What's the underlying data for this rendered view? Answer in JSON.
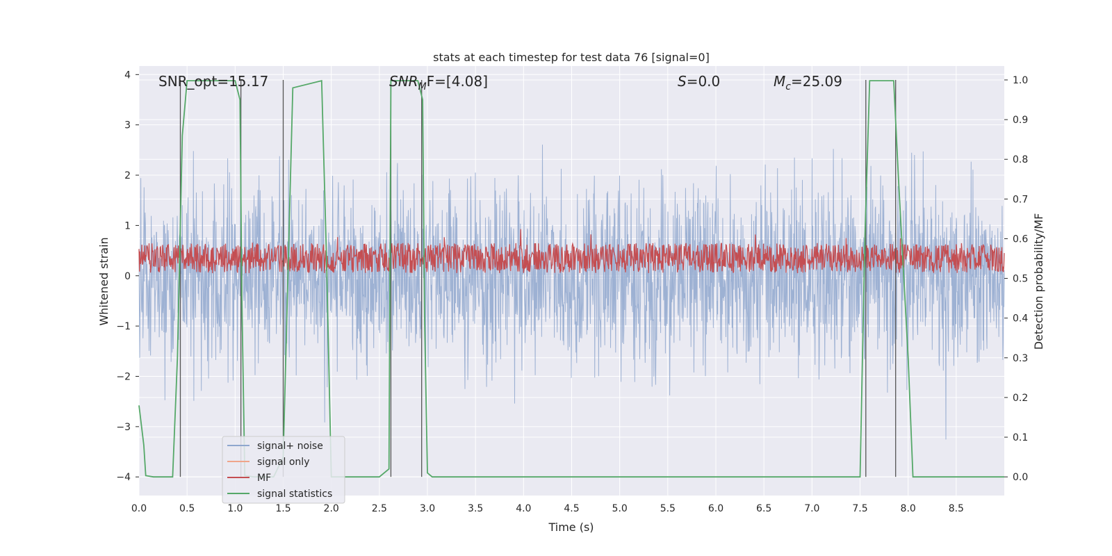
{
  "chart_data": {
    "type": "line",
    "title": "stats at each timestep for test data 76 [signal=0]",
    "xlabel": "Time (s)",
    "ylabel": "Whitened strain",
    "y2label": "Detection probability/MF",
    "xlim": [
      0.0,
      9.0
    ],
    "ylim": [
      -4.37,
      4.17
    ],
    "y2lim": [
      -0.047,
      1.035
    ],
    "xticks": [
      "0.0",
      "0.5",
      "1.0",
      "1.5",
      "2.0",
      "2.5",
      "3.0",
      "3.5",
      "4.0",
      "4.5",
      "5.0",
      "5.5",
      "6.0",
      "6.5",
      "7.0",
      "7.5",
      "8.0",
      "8.5"
    ],
    "yticks": [
      "4",
      "3",
      "2",
      "1",
      "0",
      "−1",
      "−2",
      "−3",
      "−4"
    ],
    "y2ticks": [
      "1.0",
      "0.9",
      "0.8",
      "0.7",
      "0.6",
      "0.5",
      "0.4",
      "0.3",
      "0.2",
      "0.1",
      "0.0"
    ],
    "grid": true,
    "legend_position": "lower-left",
    "annotations": {
      "snr_opt": "SNR_opt=15.17",
      "snr_mf_var": "SNR",
      "snr_mf_sub": "M",
      "snr_mf_rest": "F=[4.08]",
      "s_var": "S",
      "s_rest": "=0.0",
      "mc_var": "M",
      "mc_sub": "c",
      "mc_rest": "=25.09"
    },
    "series": [
      {
        "name": "signal+ noise",
        "color": "#8fa7ce",
        "description_range": [
          -4.0,
          4.0
        ]
      },
      {
        "name": "signal only",
        "color": "#f0a58a"
      },
      {
        "name": "MF",
        "color": "#c44e52"
      },
      {
        "name": "signal statistics",
        "color": "#55a868",
        "x": [
          0.0,
          0.05,
          0.07,
          0.15,
          0.35,
          0.4,
          0.45,
          0.5,
          0.95,
          1.0,
          1.05,
          1.07,
          1.1,
          1.2,
          1.4,
          1.5,
          1.6,
          1.9,
          1.95,
          2.0,
          2.1,
          2.5,
          2.6,
          2.62,
          2.65,
          2.9,
          2.95,
          2.97,
          3.0,
          3.05,
          7.5,
          7.55,
          7.6,
          7.85,
          7.9,
          8.0,
          8.05,
          9.0
        ],
        "values": [
          0.18,
          0.08,
          0.003,
          0.0,
          0.0,
          0.3,
          0.86,
          0.998,
          0.998,
          0.998,
          0.95,
          0.45,
          0.003,
          0.0,
          0.0,
          0.05,
          0.98,
          0.998,
          0.55,
          0.0,
          0.0,
          0.0,
          0.02,
          0.998,
          0.998,
          0.998,
          0.95,
          0.4,
          0.01,
          0.0,
          0.0,
          0.6,
          0.998,
          0.998,
          0.75,
          0.3,
          0.0,
          0.0
        ]
      }
    ],
    "vertical_lines_x": [
      0.43,
      1.06,
      1.5,
      2.62,
      2.94,
      7.56,
      7.87
    ]
  },
  "legend": {
    "items": [
      {
        "label": "signal+ noise",
        "color": "#8fa7ce"
      },
      {
        "label": "signal only",
        "color": "#f0a58a"
      },
      {
        "label": "MF",
        "color": "#c44e52"
      },
      {
        "label": "signal statistics",
        "color": "#55a868"
      }
    ]
  },
  "colors": {
    "plot_bg": "#eaeaf2",
    "grid": "#ffffff",
    "noise": "#8fa7ce",
    "mf": "#c44e52",
    "stats": "#55a868",
    "vline": "#555555"
  }
}
